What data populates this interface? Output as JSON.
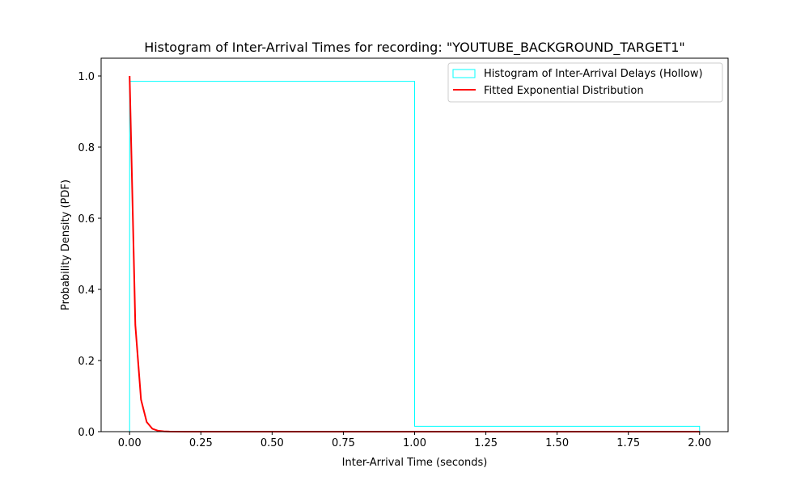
{
  "chart_data": {
    "type": "histogram",
    "title": "Histogram of Inter-Arrival Times for recording: \"YOUTUBE_BACKGROUND_TARGET1\"",
    "xlabel": "Inter-Arrival Time (seconds)",
    "ylabel": "Probability Density (PDF)",
    "xlim": [
      -0.1,
      2.1
    ],
    "ylim": [
      0,
      1.05
    ],
    "xticks": [
      0.0,
      0.25,
      0.5,
      0.75,
      1.0,
      1.25,
      1.5,
      1.75,
      2.0
    ],
    "xtick_labels": [
      "0.00",
      "0.25",
      "0.50",
      "0.75",
      "1.00",
      "1.25",
      "1.50",
      "1.75",
      "2.00"
    ],
    "yticks": [
      0.0,
      0.2,
      0.4,
      0.6,
      0.8,
      1.0
    ],
    "ytick_labels": [
      "0.0",
      "0.2",
      "0.4",
      "0.6",
      "0.8",
      "1.0"
    ],
    "grid": false,
    "legend_position": "top-right",
    "series": [
      {
        "name": "Histogram of Inter-Arrival Delays (Hollow)",
        "kind": "step-histogram",
        "color": "#00ffff",
        "bin_edges": [
          0.0,
          1.0,
          2.0
        ],
        "values": [
          0.985,
          0.015
        ]
      },
      {
        "name": "Fitted Exponential Distribution",
        "kind": "line",
        "color": "#ff0000",
        "x": [
          0.0,
          0.02,
          0.04,
          0.06,
          0.08,
          0.1,
          0.12,
          0.14,
          0.2,
          0.3,
          0.5,
          1.0,
          1.5,
          2.0
        ],
        "y": [
          1.0,
          0.3,
          0.09,
          0.027,
          0.008,
          0.0025,
          0.0008,
          0.0002,
          0.0,
          0.0,
          0.0,
          0.0,
          0.0,
          0.0
        ]
      }
    ]
  }
}
